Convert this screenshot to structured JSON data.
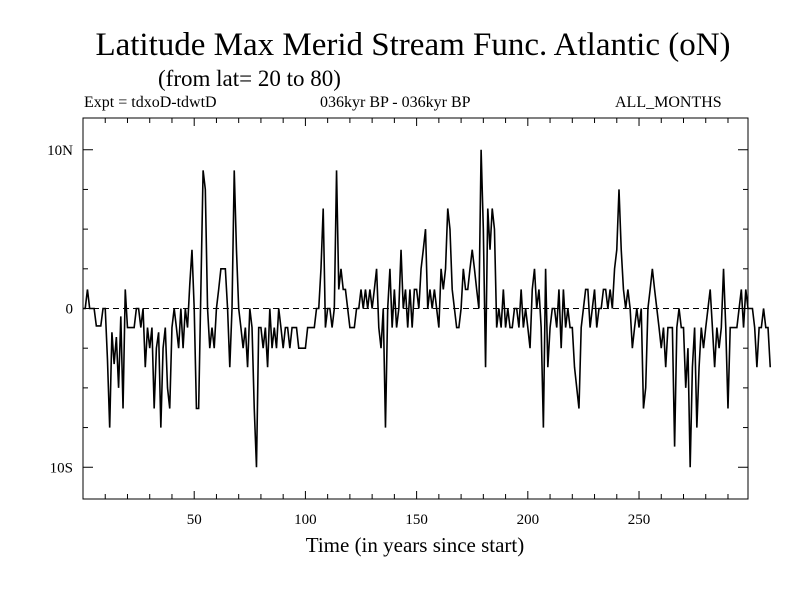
{
  "header": {
    "title": "Latitude Max Merid Stream Func. Atlantic (oN)",
    "subtitle": "(from lat= 20 to 80)",
    "expt": "Expt = tdxoD-tdwtD",
    "period": "036kyr BP - 036kyr BP",
    "months": "ALL_MONTHS"
  },
  "chart_data": {
    "type": "line",
    "title": "Latitude Max Merid Stream Func. Atlantic (oN)",
    "xlabel": "Time (in years since start)",
    "ylabel": "",
    "xlim": [
      0,
      299
    ],
    "ylim": [
      -12,
      12
    ],
    "xticks": [
      50,
      100,
      150,
      200,
      250
    ],
    "xtick_labels": [
      "50",
      "100",
      "150",
      "200",
      "250"
    ],
    "yticks": [
      10,
      0,
      -10
    ],
    "ytick_labels": [
      "10N",
      "0",
      "10S"
    ],
    "grid": false,
    "zero_line": "dashed",
    "series": [
      {
        "values": [
          0,
          0,
          1.2,
          0,
          0,
          0,
          -1.1,
          -1.1,
          -1.1,
          0,
          0,
          -3.2,
          -7.5,
          -1.5,
          -3.5,
          -1.8,
          -5.0,
          -0.5,
          -6.3,
          1.2,
          -1.2,
          -1.2,
          -1.2,
          -1.2,
          0,
          0,
          -1.2,
          0,
          -3.7,
          -1.2,
          -2.5,
          -1.2,
          -6.3,
          -2.5,
          -1.5,
          -7.5,
          -2.5,
          -1.2,
          -5.0,
          -6.3,
          -1.2,
          0,
          -1.2,
          -2.5,
          0,
          -2.5,
          0,
          -1.2,
          1.5,
          3.7,
          0,
          -6.3,
          -6.3,
          1.2,
          8.7,
          7.5,
          0,
          -2.5,
          -1.2,
          -2.5,
          0,
          1.2,
          2.5,
          2.5,
          2.5,
          0,
          -3.7,
          0,
          8.7,
          3.7,
          0,
          -1.2,
          -2.5,
          -1.2,
          -3.7,
          0,
          -1.2,
          -6.3,
          -10.0,
          -1.2,
          -1.2,
          -2.5,
          -1.2,
          -3.7,
          0,
          -2.5,
          -1.2,
          -2.5,
          0,
          -1.2,
          -2.5,
          -1.2,
          -1.2,
          -2.5,
          -1.2,
          -1.2,
          -1.2,
          -2.5,
          -2.5,
          -2.5,
          -2.5,
          -1.2,
          -1.2,
          -1.2,
          -1.2,
          0,
          0,
          2.5,
          6.3,
          -1.2,
          0,
          0,
          -1.2,
          0,
          8.7,
          1.2,
          2.5,
          1.2,
          1.2,
          0,
          -1.2,
          -1.2,
          -1.2,
          0,
          0,
          1.2,
          0,
          1.2,
          0,
          1.2,
          0,
          1.2,
          2.5,
          -1.2,
          -2.5,
          0,
          -7.5,
          0,
          2.5,
          -1.2,
          1.2,
          -1.2,
          0,
          3.7,
          0,
          1.2,
          -1.2,
          1.2,
          -1.2,
          1.2,
          1.2,
          0,
          2.5,
          3.7,
          5.0,
          0,
          1.2,
          0,
          1.2,
          0,
          -1.2,
          2.5,
          1.2,
          2.5,
          6.3,
          5.0,
          1.2,
          0,
          -1.2,
          -1.2,
          0,
          2.5,
          1.2,
          1.2,
          2.5,
          3.7,
          2.5,
          1.2,
          0,
          10.0,
          5.0,
          -3.7,
          6.3,
          3.7,
          6.3,
          5.0,
          -1.2,
          0,
          -1.2,
          1.2,
          -1.2,
          0,
          -1.2,
          -1.2,
          0,
          0,
          -1.2,
          1.2,
          -1.2,
          0,
          -1.2,
          -2.5,
          1.2,
          2.5,
          0,
          1.2,
          -1.2,
          -7.5,
          2.5,
          -3.7,
          -1.2,
          0,
          0,
          -1.2,
          1.2,
          -2.5,
          1.2,
          -1.2,
          0,
          -1.2,
          -1.2,
          -3.7,
          -5.0,
          -6.3,
          -1.2,
          0,
          1.2,
          1.2,
          -1.2,
          0,
          1.2,
          -1.2,
          0,
          0,
          1.2,
          1.2,
          0,
          1.2,
          0,
          2.5,
          3.7,
          7.5,
          3.7,
          1.2,
          0,
          1.2,
          0,
          -2.5,
          -1.2,
          0,
          -1.2,
          0,
          -6.3,
          -5.0,
          0,
          1.2,
          2.5,
          1.2,
          0,
          -1.2,
          -2.5,
          -1.2,
          -3.7,
          -1.2,
          -1.2,
          -1.2,
          -8.7,
          -1.2,
          0,
          -1.2,
          -1.2,
          -5.0,
          -2.5,
          -10.0,
          -3.7,
          -1.2,
          -7.5,
          -3.7,
          -1.2,
          -2.5,
          -1.2,
          0,
          1.2,
          -1.2,
          -3.7,
          -1.2,
          -2.5,
          -1.2,
          2.5,
          -1.2,
          -6.3,
          -1.2,
          -1.2,
          -1.2,
          -1.2,
          0,
          1.2,
          -1.2,
          1.2,
          0,
          0,
          0,
          -1.2,
          -3.7,
          -1.2,
          -1.2,
          0,
          -1.2,
          -1.2,
          -3.7
        ]
      }
    ]
  }
}
